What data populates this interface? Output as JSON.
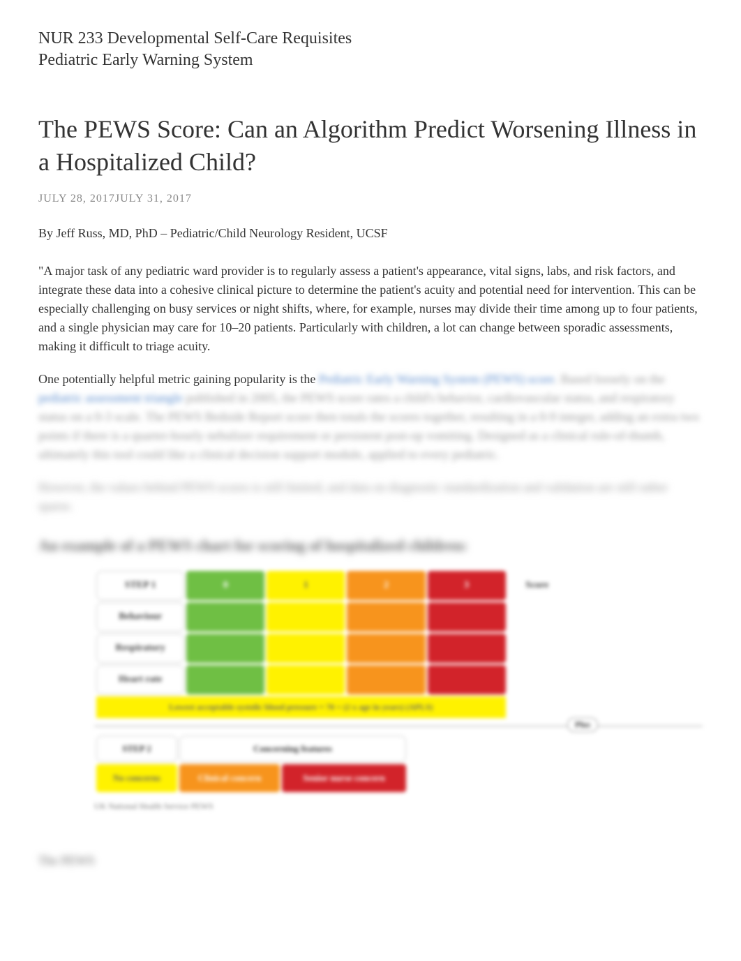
{
  "header": {
    "course_line1": "NUR 233 Developmental Self-Care Requisites",
    "course_line2": "Pediatric Early Warning System"
  },
  "article": {
    "title": "The PEWS Score: Can an Algorithm Predict Worsening Illness in a Hospitalized Child?",
    "date1": "JULY 28, 2017",
    "date2": "JULY 31, 2017",
    "byline": "By Jeff Russ, MD, PhD – Pediatric/Child Neurology Resident, UCSF",
    "para1": "\"A major task of any pediatric ward provider is to regularly assess a patient's appearance, vital signs, labs, and risk factors, and integrate these data into a cohesive clinical picture to determine the patient's acuity and potential need for intervention. This can be especially challenging on busy services or night shifts, where, for example, nurses may divide their time among up to four patients, and a single physician may care for 10–20 patients. Particularly with children, a lot can change between sporadic assessments, making it difficult to triage acuity.",
    "para2_prefix": "One potentially helpful metric gaining popularity is the ",
    "para2_link1": "Pediatric Early Warning System (PEWS) score",
    "para2_mid": ". Based loosely on the ",
    "para2_link2": "pediatric assessment triangle",
    "para2_rest": " published in 2005, the PEWS score rates a child's behavior, cardiovascular status, and respiratory status on a 0-3 scale. The PEWS Bedside Report score then totals the scores together, resulting in a 0-9 integer, adding an extra two points if there is a quarter-hourly nebulizer requirement or persistent post-op vomiting. Designed as a clinical rule-of-thumb, ultimately this tool could like a clinical decision support module, applied to every pediatric.",
    "para3": "However, the values behind PEWS scores is still limited, and data on diagnostic standardization and validation are still rather sparse.",
    "chart_heading": "An example of a PEWS chart for scoring of hospitalized children:"
  },
  "chart": {
    "step1_label": "STEP 1",
    "score_header": "Score",
    "rows": [
      {
        "label": "Behaviour",
        "cells": [
          "",
          "",
          "",
          ""
        ]
      },
      {
        "label": "Respiratory",
        "cells": [
          "",
          "",
          "",
          ""
        ]
      },
      {
        "label": "Heart rate",
        "cells": [
          "",
          "",
          "",
          ""
        ]
      }
    ],
    "score_cols": [
      "0",
      "1",
      "2",
      "3"
    ],
    "colors": {
      "green": "#6fbf44",
      "yellow": "#fff200",
      "orange": "#f7941d",
      "red": "#d2232a",
      "white": "#ffffff",
      "border": "#cccccc"
    },
    "footer_text": "Lowest acceptable systolic blood pressure = 70 + (2 x age in years) (APLS)",
    "plus_label": "Plus",
    "step2_label": "STEP 2",
    "step2_header": "Concerning features",
    "step2_cells": [
      "No concerns",
      "Clinical concern",
      "Senior nurse concern"
    ],
    "caption": "UK National Health Service PEWS"
  },
  "bottom": {
    "text": "The PEWS"
  }
}
